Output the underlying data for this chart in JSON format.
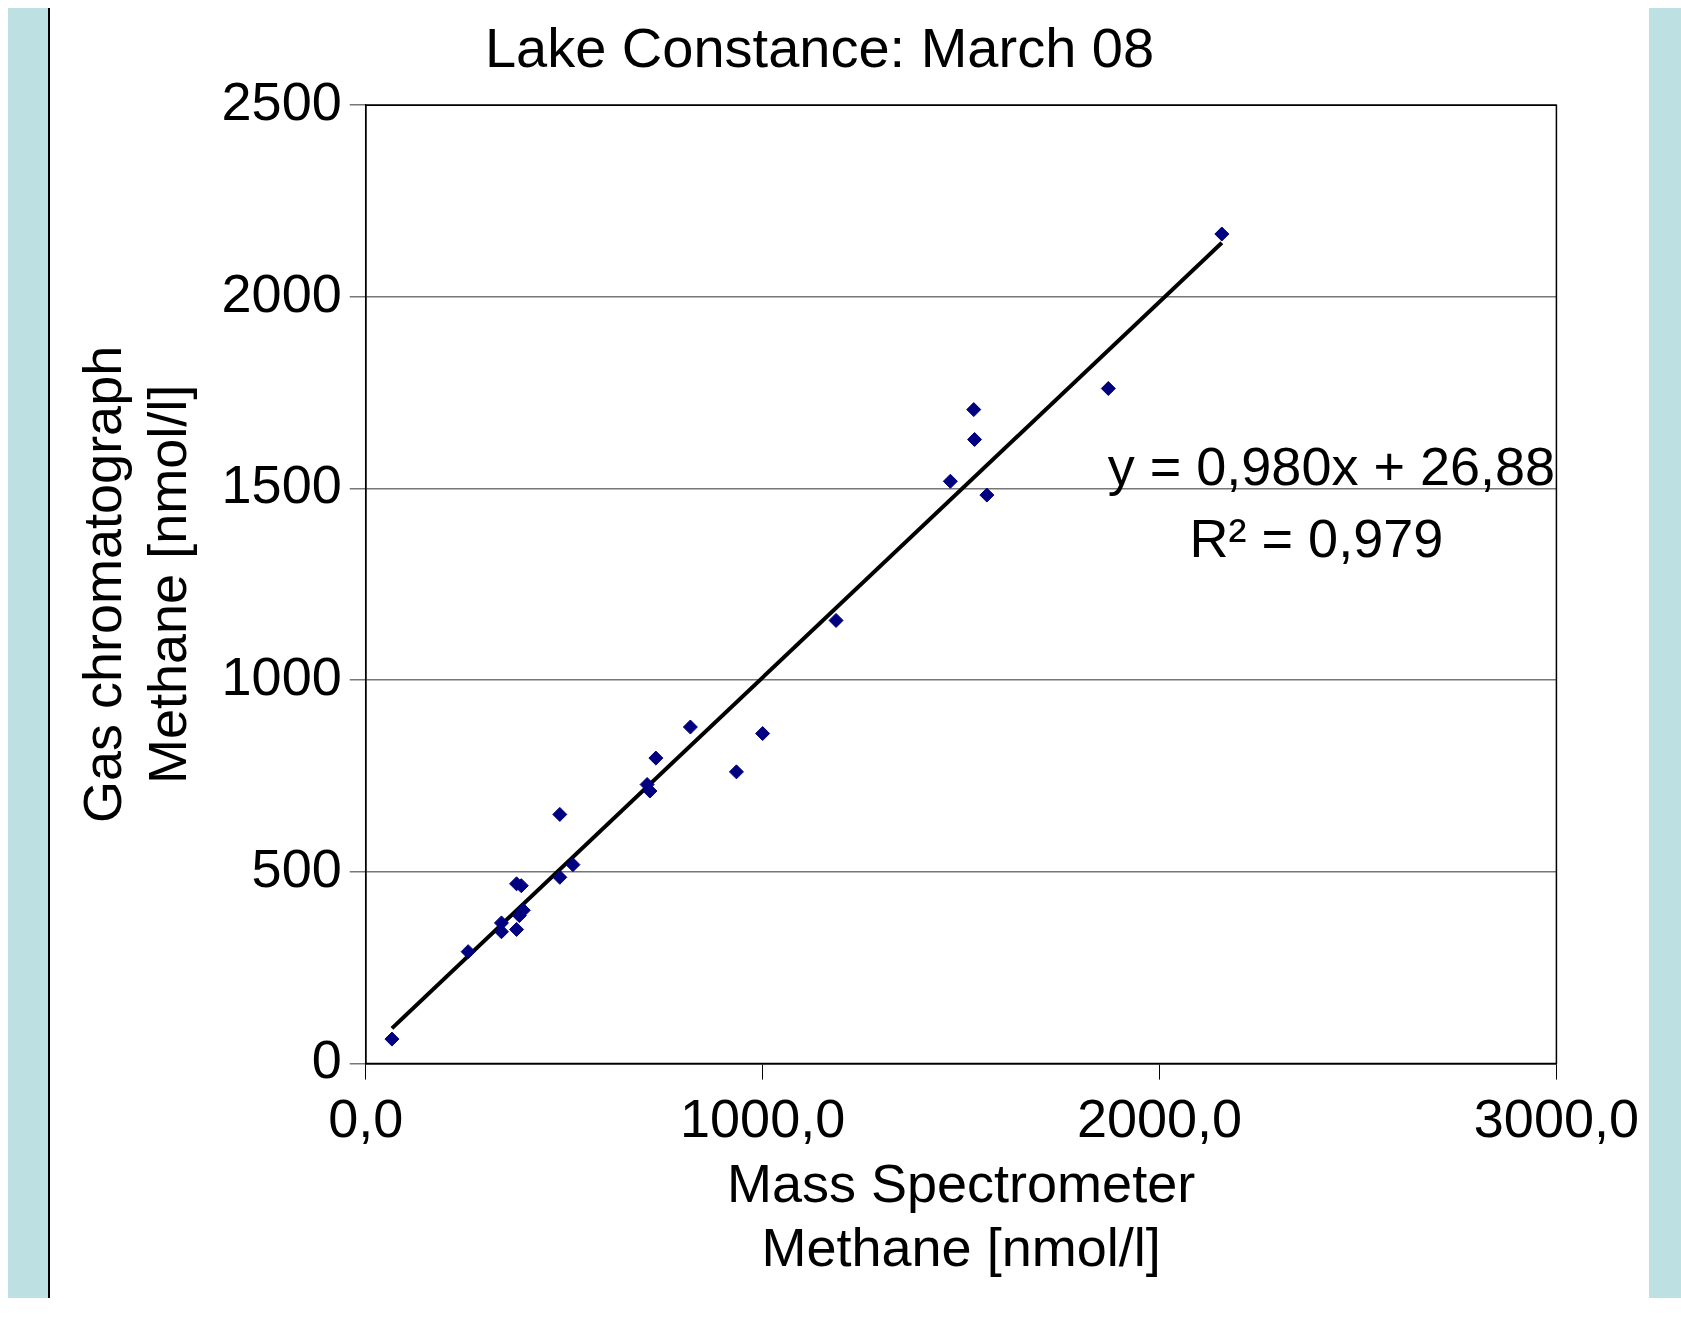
{
  "chart_data": {
    "type": "scatter",
    "title": "Lake Constance: March 08",
    "xlabel": "Mass Spectrometer\nMethane [nmol/l]",
    "ylabel": "Gas chromatograph\nMethane [nmol/l]",
    "annotations": [
      "y = 0,980x + 26,88",
      "R² = 0,979"
    ],
    "series": [
      {
        "color": "#000080",
        "marker": "diamond",
        "x": [
          66,
          258,
          342,
          342,
          380,
          380,
          392,
          387,
          397,
          489,
          489,
          522,
          709,
          716,
          731,
          818,
          934,
          1000,
          1185,
          1473,
          1532,
          1534,
          1565,
          1871,
          2157
        ],
        "values": [
          64,
          292,
          367,
          344,
          350,
          469,
          464,
          386,
          400,
          486,
          650,
          519,
          728,
          711,
          797,
          878,
          761,
          861,
          1156,
          1519,
          1706,
          1628,
          1483,
          1761,
          2164
        ]
      },
      {
        "type": "line",
        "color": "#000000",
        "marker": "none",
        "x": [
          66,
          2157
        ],
        "values": [
          92,
          2141
        ]
      }
    ],
    "line_style": "solid",
    "grid": "y",
    "legend": false,
    "xlim": [
      0,
      3000
    ],
    "xticks": [
      {
        "value": 0,
        "label": "0,0"
      },
      {
        "value": 1000,
        "label": "1000,0"
      },
      {
        "value": 2000,
        "label": "2000,0"
      },
      {
        "value": 3000,
        "label": "3000,0"
      }
    ],
    "ylim": [
      0,
      2500
    ],
    "yticks": [
      0,
      500,
      1000,
      1500,
      2000,
      2500
    ]
  }
}
